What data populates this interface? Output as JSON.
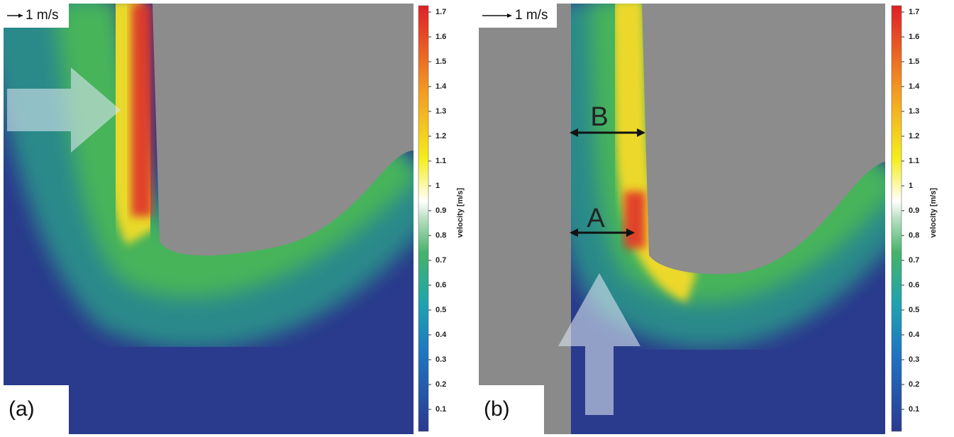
{
  "panels": [
    {
      "label": "(a)",
      "scale_label": "1 m/s",
      "colorbar": {
        "label": "velocity [m/s]",
        "ticks": [
          0.1,
          0.2,
          0.3,
          0.4,
          0.5,
          0.6,
          0.7,
          0.8,
          0.9,
          1.0,
          1.1,
          1.2,
          1.3,
          1.4,
          1.5,
          1.6,
          1.7
        ]
      }
    },
    {
      "label": "(b)",
      "scale_label": "1 m/s",
      "annotations": [
        "B",
        "A"
      ],
      "colorbar": {
        "label": "velocity [m/s]",
        "ticks": [
          0.1,
          0.2,
          0.3,
          0.4,
          0.5,
          0.6,
          0.7,
          0.8,
          0.9,
          1.0,
          1.1,
          1.2,
          1.3,
          1.4,
          1.5,
          1.6,
          1.7
        ]
      }
    }
  ]
}
